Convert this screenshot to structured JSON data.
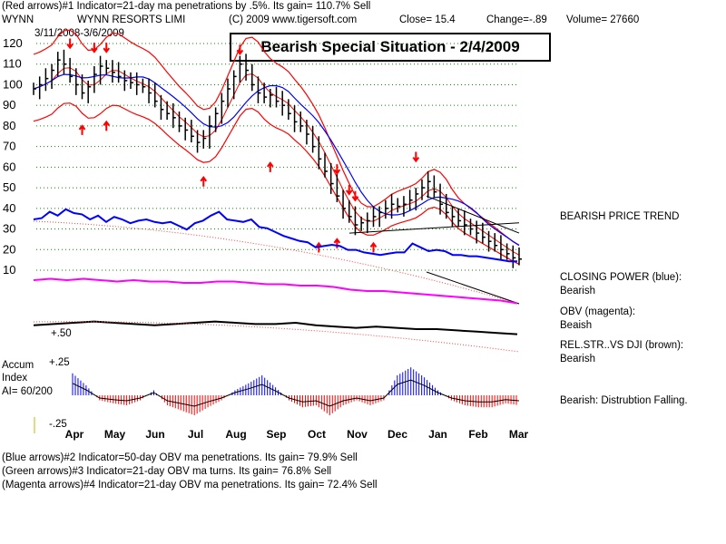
{
  "header": {
    "line1": "(Red arrows)#1 Indicator=21-day ma penetrations by .5%.  Its gain= 110.7% Sell",
    "ticker": "WYNN",
    "company": "WYNN RESORTS LIMI",
    "copyright": "(C) 2009 www.tigersoft.com",
    "close": "Close=  15.4",
    "change": "Change=-.89",
    "volume": "Volume=  27660",
    "date_range": "3/11/2008-3/6/2009"
  },
  "banner": "Bearish Special Situation - 2/4/2009",
  "right_labels": {
    "price_trend": "BEARISH PRICE TREND",
    "closing_power_title": "CLOSING POWER (blue):",
    "closing_power_value": "Bearish",
    "obv_title": "OBV (magenta):",
    "obv_value": "Beaish",
    "relstr_title": "REL.STR..VS DJI (brown):",
    "relstr_value": "Bearish",
    "accum_status": "Bearish: Distrubtion Falling."
  },
  "accum": {
    "title1": "Accum",
    "title2": "Index",
    "ai": "AI= 60/200",
    "top_label": "+.25",
    "bottom_label": "-.25",
    "relstr_label": "+.50"
  },
  "footer": {
    "line1": "(Blue arrows)#2 Indicator=50-day OBV ma penetrations.  Its gain= 79.9% Sell",
    "line2": "(Green arrows)#3 Indicator=21-day OBV ma turns.  Its gain= 76.8% Sell",
    "line3": "(Magenta arrows)#4 Indicator=21-day OBV ma penetrations.  Its gain= 72.4% Sell"
  },
  "chart_data": {
    "type": "line",
    "y_ticks": [
      120,
      110,
      100,
      90,
      80,
      70,
      60,
      50,
      40,
      30,
      20,
      10
    ],
    "ylim": [
      10,
      120
    ],
    "x_ticks": [
      "Apr",
      "May",
      "Jun",
      "Jul",
      "Aug",
      "Sep",
      "Oct",
      "Nov",
      "Dec",
      "Jan",
      "Feb",
      "Mar"
    ],
    "grid": true,
    "colors": {
      "price": "#000000",
      "bands": "#ff0000",
      "ma": "#0000ff",
      "closing_power": "#0000ff",
      "obv": "#ff00ff",
      "relstr": "#000000",
      "accum_pos": "#0000ff",
      "accum_neg": "#ff0000",
      "arrows": "#ff0000"
    },
    "price_closes": [
      98,
      100,
      103,
      107,
      112,
      110,
      104,
      100,
      96,
      99,
      105,
      109,
      108,
      106,
      104,
      102,
      101,
      100,
      99,
      96,
      92,
      88,
      86,
      84,
      80,
      78,
      75,
      72,
      74,
      80,
      86,
      92,
      98,
      104,
      110,
      107,
      100,
      96,
      94,
      95,
      92,
      90,
      86,
      82,
      80,
      76,
      70,
      64,
      58,
      52,
      46,
      40,
      36,
      32,
      33,
      34,
      36,
      38,
      40,
      42,
      41,
      42,
      44,
      47,
      50,
      53,
      48,
      42,
      38,
      36,
      34,
      32,
      30,
      28,
      26,
      24,
      22,
      20,
      18,
      16,
      15.4
    ],
    "arrow_markers": [
      {
        "dir": "down",
        "x_index": 6,
        "value": 118
      },
      {
        "dir": "down",
        "x_index": 10,
        "value": 116
      },
      {
        "dir": "down",
        "x_index": 12,
        "value": 116
      },
      {
        "dir": "up",
        "x_index": 8,
        "value": 80
      },
      {
        "dir": "up",
        "x_index": 12,
        "value": 82
      },
      {
        "dir": "up",
        "x_index": 28,
        "value": 55
      },
      {
        "dir": "down",
        "x_index": 34,
        "value": 115
      },
      {
        "dir": "up",
        "x_index": 39,
        "value": 62
      },
      {
        "dir": "down",
        "x_index": 50,
        "value": 57
      },
      {
        "dir": "down",
        "x_index": 52,
        "value": 47
      },
      {
        "dir": "down",
        "x_index": 53,
        "value": 44
      },
      {
        "dir": "up",
        "x_index": 47,
        "value": 23
      },
      {
        "dir": "up",
        "x_index": 50,
        "value": 25
      },
      {
        "dir": "up",
        "x_index": 56,
        "value": 23
      },
      {
        "dir": "down",
        "x_index": 63,
        "value": 63
      }
    ],
    "closing_power": [
      30,
      31,
      36,
      33,
      38,
      35,
      34,
      30,
      33,
      28,
      32,
      30,
      27,
      29,
      30,
      28,
      27,
      28,
      25,
      22,
      27,
      29,
      33,
      36,
      30,
      29,
      28,
      30,
      24,
      23,
      20,
      17,
      15,
      13,
      12,
      8,
      9,
      10,
      9,
      6,
      6,
      4,
      3,
      2,
      3,
      4,
      4,
      11,
      8,
      5,
      6,
      5,
      2,
      2,
      1,
      1,
      0,
      -1,
      -2,
      -3,
      -3
    ],
    "obv": [
      6,
      7,
      6,
      7,
      6,
      5,
      6,
      5,
      5,
      4,
      4,
      5,
      5,
      4,
      3,
      3,
      2,
      2,
      1,
      -1,
      -2,
      -2,
      -3,
      -4,
      -5,
      -6,
      -7,
      -8,
      -9,
      -11
    ],
    "relstr": [
      -2,
      -1,
      0,
      1,
      0,
      -1,
      -2,
      -1,
      0,
      1,
      0,
      -1,
      -1,
      0,
      -2,
      -3,
      -4,
      -3,
      -4,
      -5,
      -5,
      -6,
      -7,
      -8,
      -9
    ],
    "accum_index": [
      0.22,
      0.1,
      -0.05,
      -0.08,
      -0.1,
      -0.05,
      0.05,
      -0.1,
      -0.15,
      -0.2,
      -0.12,
      -0.05,
      0.05,
      0.12,
      0.2,
      0.08,
      -0.05,
      -0.12,
      -0.1,
      -0.2,
      -0.1,
      -0.05,
      -0.1,
      -0.05,
      0.2,
      0.28,
      0.18,
      0.05,
      -0.05,
      -0.1,
      -0.12,
      -0.12,
      -0.08,
      -0.1
    ]
  }
}
